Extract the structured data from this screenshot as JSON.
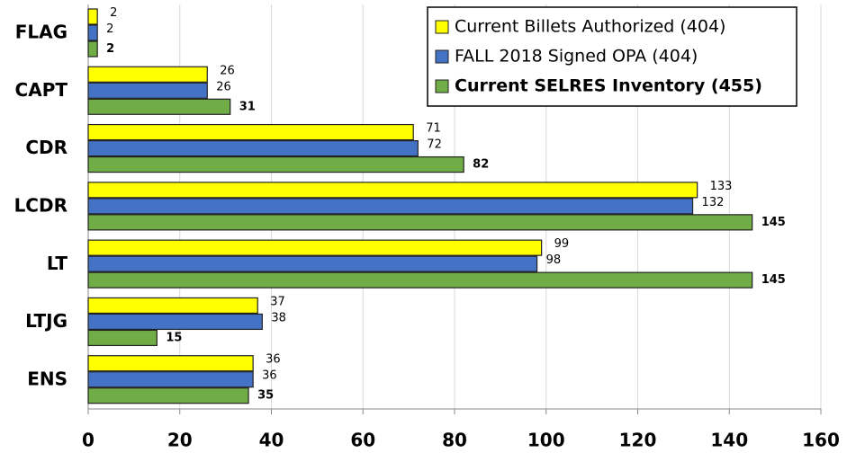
{
  "chart_data": {
    "type": "hbar",
    "categories": [
      "FLAG",
      "CAPT",
      "CDR",
      "LCDR",
      "LT",
      "LTJG",
      "ENS"
    ],
    "series": [
      {
        "name": "Current Billets Authorized (404)",
        "color": "#ffff00",
        "values": [
          2,
          26,
          71,
          133,
          99,
          37,
          36
        ]
      },
      {
        "name": "FALL 2018 Signed OPA (404)",
        "color": "#4472c4",
        "values": [
          2,
          26,
          72,
          132,
          98,
          38,
          36
        ]
      },
      {
        "name": "Current SELRES Inventory (455)",
        "color": "#70ad47",
        "values": [
          2,
          31,
          82,
          145,
          145,
          15,
          35
        ]
      }
    ],
    "xlim": [
      0,
      160
    ],
    "xticks": [
      0,
      20,
      40,
      60,
      80,
      100,
      120,
      140,
      160
    ],
    "grid": true,
    "legend": "top-right"
  }
}
